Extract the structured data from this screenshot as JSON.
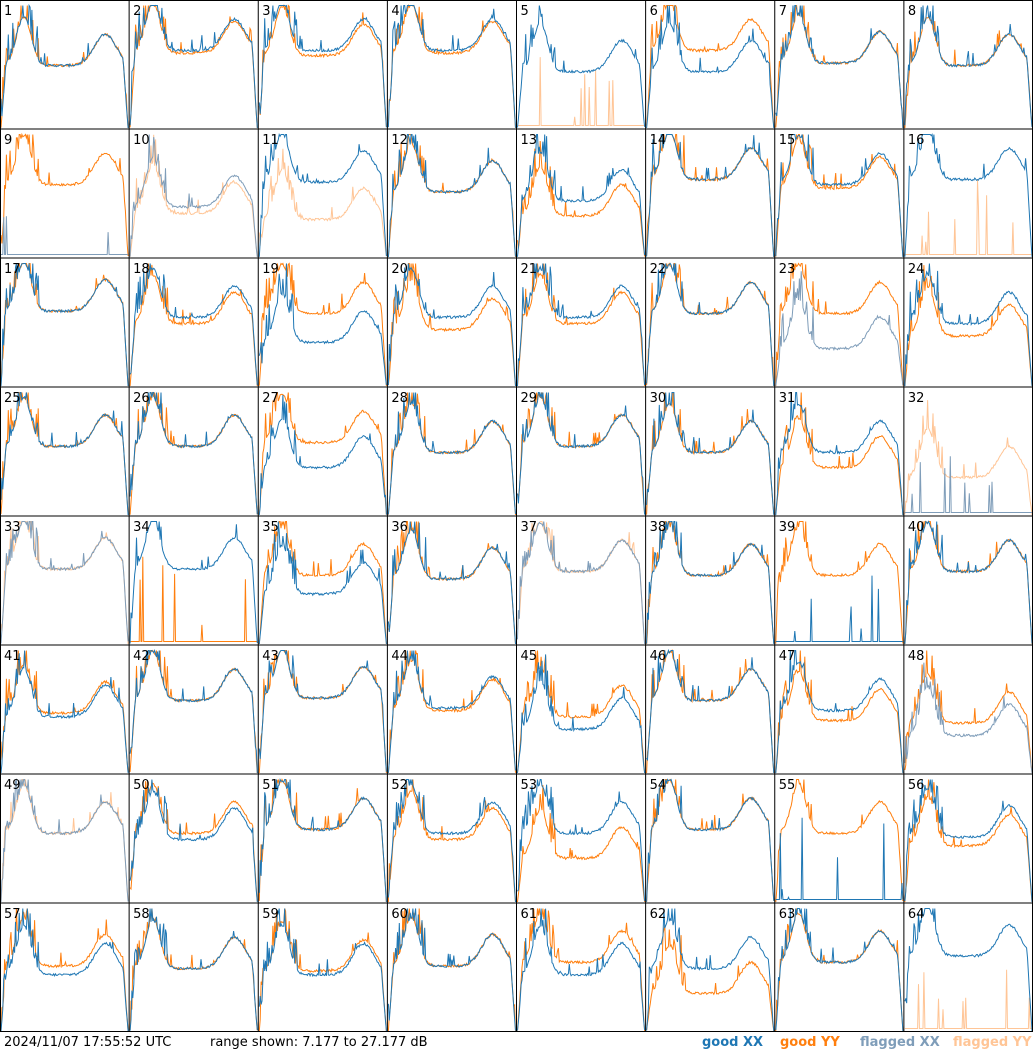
{
  "footer": {
    "timestamp": "2024/11/07 17:55:52 UTC",
    "range": "range shown: 7.177 to 27.177 dB"
  },
  "legend": {
    "good_xx": "good XX",
    "good_yy": "good YY",
    "flagged_xx": "flagged XX",
    "flagged_yy": "flagged YY"
  },
  "colors": {
    "good_xx": "#1f77b4",
    "good_yy": "#ff7f0e",
    "flagged_xx": "#7f9db9",
    "flagged_yy": "#ffc596"
  },
  "chart_data": {
    "type": "line",
    "title": "",
    "xlabel": "",
    "ylabel": "",
    "ylim": [
      7.177,
      27.177
    ],
    "grid": "8x8 small multiples",
    "panels": [
      {
        "id": "1",
        "xx": "good",
        "yy": "good",
        "xx_level": 0.5,
        "yy_level": 0.5
      },
      {
        "id": "2",
        "xx": "good",
        "yy": "good",
        "xx_level": 0.62,
        "yy_level": 0.6
      },
      {
        "id": "3",
        "xx": "good",
        "yy": "good",
        "xx_level": 0.62,
        "yy_level": 0.58
      },
      {
        "id": "4",
        "xx": "good",
        "yy": "good",
        "xx_level": 0.62,
        "yy_level": 0.6
      },
      {
        "id": "5",
        "xx": "good",
        "yy": "flagged",
        "xx_level": 0.45,
        "yy_level": 0.0
      },
      {
        "id": "6",
        "xx": "good",
        "yy": "good",
        "xx_level": 0.45,
        "yy_level": 0.62
      },
      {
        "id": "7",
        "xx": "good",
        "yy": "good",
        "xx_level": 0.52,
        "yy_level": 0.52
      },
      {
        "id": "8",
        "xx": "good",
        "yy": "good",
        "xx_level": 0.5,
        "yy_level": 0.5
      },
      {
        "id": "9",
        "xx": "flagged",
        "yy": "good",
        "xx_level": 0.0,
        "yy_level": 0.58
      },
      {
        "id": "10",
        "xx": "flagged",
        "yy": "flagged",
        "xx_level": 0.4,
        "yy_level": 0.35
      },
      {
        "id": "11",
        "xx": "good",
        "yy": "flagged",
        "xx_level": 0.6,
        "yy_level": 0.3
      },
      {
        "id": "12",
        "xx": "good",
        "yy": "good",
        "xx_level": 0.52,
        "yy_level": 0.52
      },
      {
        "id": "13",
        "xx": "good",
        "yy": "good",
        "xx_level": 0.45,
        "yy_level": 0.33
      },
      {
        "id": "14",
        "xx": "good",
        "yy": "good",
        "xx_level": 0.62,
        "yy_level": 0.62
      },
      {
        "id": "15",
        "xx": "good",
        "yy": "good",
        "xx_level": 0.58,
        "yy_level": 0.55
      },
      {
        "id": "16",
        "xx": "good",
        "yy": "flagged",
        "xx_level": 0.62,
        "yy_level": 0.0
      },
      {
        "id": "17",
        "xx": "good",
        "yy": "good",
        "xx_level": 0.6,
        "yy_level": 0.6
      },
      {
        "id": "18",
        "xx": "good",
        "yy": "good",
        "xx_level": 0.55,
        "yy_level": 0.5
      },
      {
        "id": "19",
        "xx": "good",
        "yy": "good",
        "xx_level": 0.35,
        "yy_level": 0.58
      },
      {
        "id": "20",
        "xx": "good",
        "yy": "good",
        "xx_level": 0.55,
        "yy_level": 0.45
      },
      {
        "id": "21",
        "xx": "good",
        "yy": "good",
        "xx_level": 0.55,
        "yy_level": 0.5
      },
      {
        "id": "22",
        "xx": "good",
        "yy": "good",
        "xx_level": 0.58,
        "yy_level": 0.58
      },
      {
        "id": "23",
        "xx": "flagged",
        "yy": "good",
        "xx_level": 0.3,
        "yy_level": 0.58
      },
      {
        "id": "24",
        "xx": "good",
        "yy": "good",
        "xx_level": 0.5,
        "yy_level": 0.4
      },
      {
        "id": "25",
        "xx": "good",
        "yy": "good",
        "xx_level": 0.55,
        "yy_level": 0.55
      },
      {
        "id": "26",
        "xx": "good",
        "yy": "good",
        "xx_level": 0.55,
        "yy_level": 0.55
      },
      {
        "id": "27",
        "xx": "good",
        "yy": "good",
        "xx_level": 0.38,
        "yy_level": 0.58
      },
      {
        "id": "28",
        "xx": "good",
        "yy": "good",
        "xx_level": 0.5,
        "yy_level": 0.5
      },
      {
        "id": "29",
        "xx": "good",
        "yy": "good",
        "xx_level": 0.55,
        "yy_level": 0.55
      },
      {
        "id": "30",
        "xx": "good",
        "yy": "good",
        "xx_level": 0.5,
        "yy_level": 0.5
      },
      {
        "id": "31",
        "xx": "good",
        "yy": "good",
        "xx_level": 0.5,
        "yy_level": 0.38
      },
      {
        "id": "32",
        "xx": "flagged",
        "yy": "flagged",
        "xx_level": 0.0,
        "yy_level": 0.3
      },
      {
        "id": "33",
        "xx": "flagged",
        "yy": "flagged",
        "xx_level": 0.6,
        "yy_level": 0.6
      },
      {
        "id": "34",
        "xx": "good",
        "yy": "good",
        "xx_level": 0.6,
        "yy_level": 0.0
      },
      {
        "id": "35",
        "xx": "good",
        "yy": "good",
        "xx_level": 0.4,
        "yy_level": 0.55
      },
      {
        "id": "36",
        "xx": "good",
        "yy": "good",
        "xx_level": 0.52,
        "yy_level": 0.52
      },
      {
        "id": "37",
        "xx": "flagged",
        "yy": "flagged",
        "xx_level": 0.58,
        "yy_level": 0.58
      },
      {
        "id": "38",
        "xx": "good",
        "yy": "good",
        "xx_level": 0.55,
        "yy_level": 0.55
      },
      {
        "id": "39",
        "xx": "good",
        "yy": "good",
        "xx_level": 0.0,
        "yy_level": 0.55
      },
      {
        "id": "40",
        "xx": "good",
        "yy": "good",
        "xx_level": 0.58,
        "yy_level": 0.58
      },
      {
        "id": "41",
        "xx": "good",
        "yy": "good",
        "xx_level": 0.45,
        "yy_level": 0.48
      },
      {
        "id": "42",
        "xx": "good",
        "yy": "good",
        "xx_level": 0.58,
        "yy_level": 0.58
      },
      {
        "id": "43",
        "xx": "good",
        "yy": "good",
        "xx_level": 0.6,
        "yy_level": 0.6
      },
      {
        "id": "44",
        "xx": "good",
        "yy": "good",
        "xx_level": 0.52,
        "yy_level": 0.5
      },
      {
        "id": "45",
        "xx": "good",
        "yy": "good",
        "xx_level": 0.35,
        "yy_level": 0.45
      },
      {
        "id": "46",
        "xx": "good",
        "yy": "good",
        "xx_level": 0.58,
        "yy_level": 0.58
      },
      {
        "id": "47",
        "xx": "good",
        "yy": "good",
        "xx_level": 0.5,
        "yy_level": 0.42
      },
      {
        "id": "48",
        "xx": "flagged",
        "yy": "good",
        "xx_level": 0.3,
        "yy_level": 0.4
      },
      {
        "id": "49",
        "xx": "flagged",
        "yy": "flagged",
        "xx_level": 0.55,
        "yy_level": 0.55
      },
      {
        "id": "50",
        "xx": "good",
        "yy": "good",
        "xx_level": 0.5,
        "yy_level": 0.55
      },
      {
        "id": "51",
        "xx": "good",
        "yy": "good",
        "xx_level": 0.58,
        "yy_level": 0.58
      },
      {
        "id": "52",
        "xx": "good",
        "yy": "good",
        "xx_level": 0.55,
        "yy_level": 0.5
      },
      {
        "id": "53",
        "xx": "good",
        "yy": "good",
        "xx_level": 0.55,
        "yy_level": 0.35
      },
      {
        "id": "54",
        "xx": "good",
        "yy": "good",
        "xx_level": 0.58,
        "yy_level": 0.58
      },
      {
        "id": "55",
        "xx": "good",
        "yy": "good",
        "xx_level": 0.0,
        "yy_level": 0.55
      },
      {
        "id": "56",
        "xx": "good",
        "yy": "good",
        "xx_level": 0.52,
        "yy_level": 0.45
      },
      {
        "id": "57",
        "xx": "good",
        "yy": "good",
        "xx_level": 0.45,
        "yy_level": 0.52
      },
      {
        "id": "58",
        "xx": "good",
        "yy": "good",
        "xx_level": 0.5,
        "yy_level": 0.5
      },
      {
        "id": "59",
        "xx": "good",
        "yy": "good",
        "xx_level": 0.45,
        "yy_level": 0.48
      },
      {
        "id": "60",
        "xx": "good",
        "yy": "good",
        "xx_level": 0.52,
        "yy_level": 0.52
      },
      {
        "id": "61",
        "xx": "good",
        "yy": "good",
        "xx_level": 0.45,
        "yy_level": 0.55
      },
      {
        "id": "62",
        "xx": "good",
        "yy": "good",
        "xx_level": 0.5,
        "yy_level": 0.3
      },
      {
        "id": "63",
        "xx": "good",
        "yy": "good",
        "xx_level": 0.55,
        "yy_level": 0.55
      },
      {
        "id": "64",
        "xx": "good",
        "yy": "flagged",
        "xx_level": 0.6,
        "yy_level": 0.0
      }
    ]
  }
}
